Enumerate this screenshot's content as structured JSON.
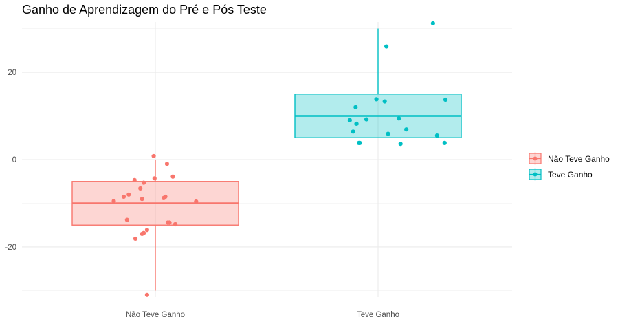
{
  "chart_data": {
    "type": "boxplot",
    "title": "Ganho de Aprendizagem do Pré e Pós Teste",
    "xlabel": "",
    "ylabel": "",
    "categories": [
      "Não Teve Ganho",
      "Teve Ganho"
    ],
    "ylim": [
      -31.5,
      31.5
    ],
    "yticks": [
      -20,
      0,
      20
    ],
    "grid": true,
    "legend": {
      "position": "right",
      "entries": [
        "Não Teve Ganho",
        "Teve Ganho"
      ]
    },
    "colors": {
      "Não Teve Ganho": "#F8766D",
      "Teve Ganho": "#00BFC4"
    },
    "boxes": [
      {
        "name": "Não Teve Ganho",
        "whisker_low": -30,
        "q1": -15,
        "median": -10,
        "q3": -5,
        "whisker_high": 0
      },
      {
        "name": "Teve Ganho",
        "whisker_low": 5,
        "q1": 5,
        "median": 10,
        "q3": 15,
        "whisker_high": 30
      }
    ],
    "points": [
      {
        "series": "Não Teve Ganho",
        "x": [
          -0.5,
          -0.38,
          -0.32,
          -0.34,
          -0.25,
          -0.24,
          -0.18,
          -0.16,
          -0.16,
          -0.14,
          -0.14,
          -0.1,
          -0.1,
          -0.02,
          -0.01,
          0.1,
          0.12,
          0.14,
          0.15,
          0.17,
          0.21,
          0.24,
          0.24,
          0.49
        ],
        "y": [
          -9.5,
          -8.5,
          -8.0,
          -13.8,
          -4.7,
          -18.1,
          -6.6,
          -9.0,
          -17.0,
          -16.8,
          -5.3,
          -16.1,
          -31.0,
          0.8,
          -4.3,
          -8.8,
          -8.5,
          -1.0,
          -14.4,
          -14.4,
          -3.9,
          -14.8,
          -14.8,
          -9.6
        ]
      },
      {
        "series": "Teve Ganho",
        "x": [
          -0.34,
          -0.3,
          -0.27,
          -0.26,
          -0.23,
          -0.22,
          -0.14,
          -0.02,
          0.08,
          0.1,
          0.12,
          0.25,
          0.27,
          0.34,
          0.66,
          0.71,
          0.8,
          0.81
        ],
        "y": [
          9.0,
          6.4,
          12.0,
          8.2,
          3.8,
          3.8,
          9.2,
          13.8,
          13.3,
          25.9,
          5.9,
          9.4,
          3.6,
          6.9,
          31.2,
          5.5,
          3.8,
          13.7
        ]
      }
    ]
  }
}
